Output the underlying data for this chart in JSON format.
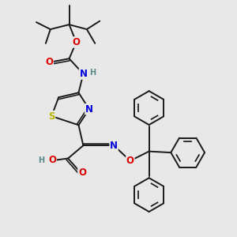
{
  "bg_color": "#e8e8e8",
  "bond_color": "#1a1a1a",
  "atom_colors": {
    "S": "#b8b800",
    "N": "#0000dd",
    "O": "#dd0000",
    "H": "#5a8a8a",
    "C": "#1a1a1a"
  },
  "bond_width": 1.4,
  "font_size": 8.5,
  "figsize": [
    3.0,
    3.0
  ],
  "dpi": 100
}
